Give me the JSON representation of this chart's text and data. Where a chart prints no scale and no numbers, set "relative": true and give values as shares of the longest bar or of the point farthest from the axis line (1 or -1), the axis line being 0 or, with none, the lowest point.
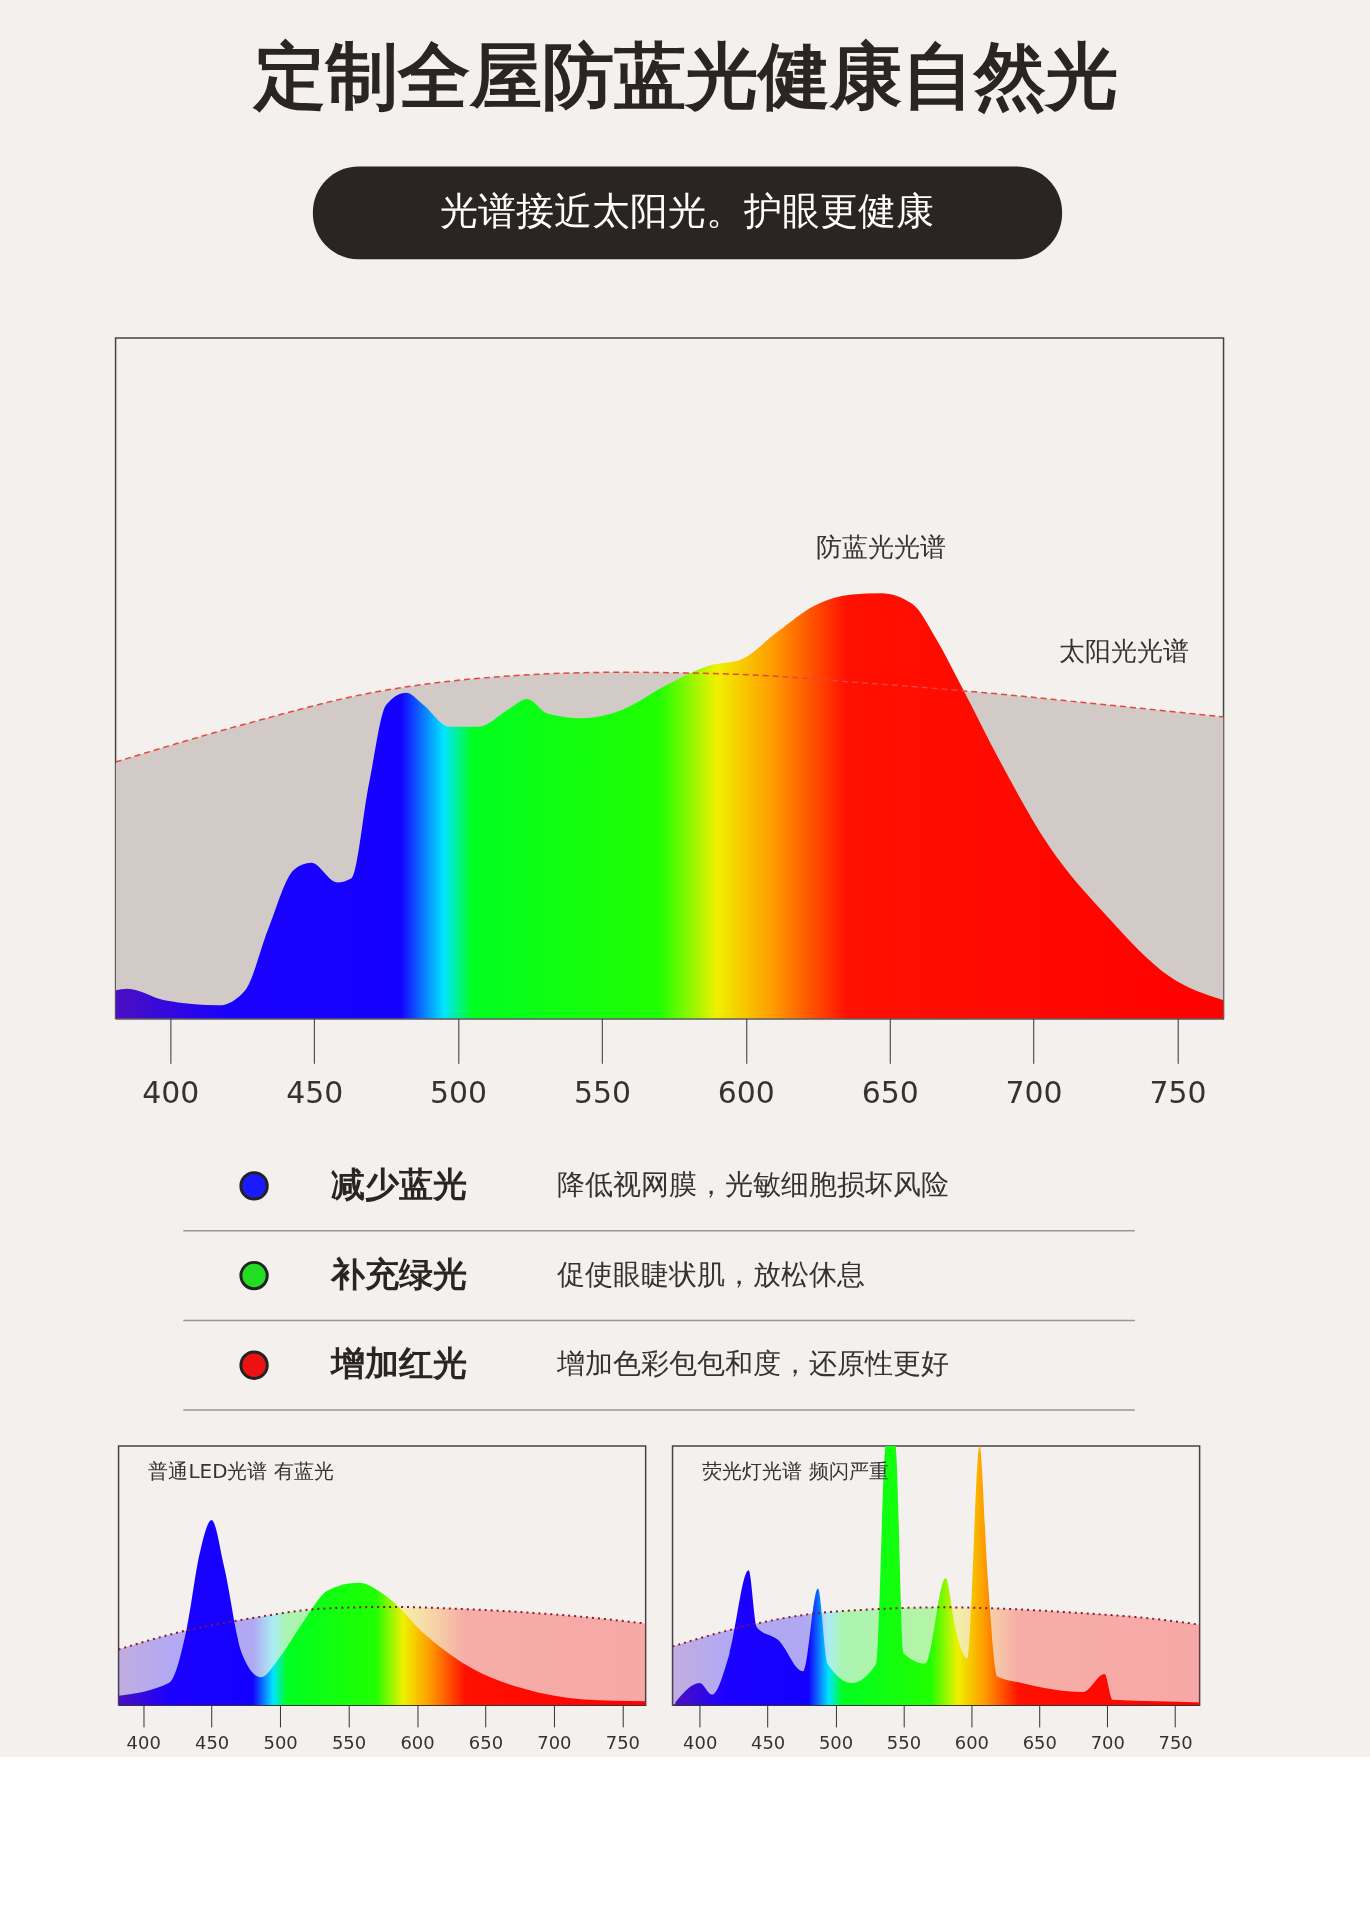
{
  "chart_data": [
    {
      "type": "area",
      "title": "定制全屋防蓝光健康自然光",
      "subtitle": "光谱接近太阳光。护眼更健康",
      "relative": true,
      "xlim": [
        381,
        766
      ],
      "xticks": [
        400,
        450,
        500,
        550,
        600,
        650,
        700,
        750
      ],
      "series": [
        {
          "name": "防蓝光光谱",
          "x": [
            381,
            385,
            398,
            417,
            426,
            434,
            443,
            449,
            458,
            463,
            469,
            475,
            482,
            488,
            497,
            507,
            518,
            524,
            531,
            543,
            556,
            573,
            588,
            598,
            611,
            624,
            637,
            647,
            658,
            666,
            675,
            688,
            705,
            726,
            747,
            766
          ],
          "values": [
            0.066,
            0.07,
            0.043,
            0.031,
            0.066,
            0.21,
            0.35,
            0.366,
            0.32,
            0.33,
            0.55,
            0.737,
            0.766,
            0.737,
            0.686,
            0.686,
            0.729,
            0.751,
            0.717,
            0.706,
            0.723,
            0.786,
            0.831,
            0.843,
            0.909,
            0.971,
            0.997,
            1,
            0.974,
            0.894,
            0.78,
            0.609,
            0.409,
            0.237,
            0.1,
            0.043
          ]
        },
        {
          "name": "太阳光光谱",
          "color": "#e8453c",
          "line_style": "dashed",
          "x": [
            381,
            427,
            470,
            513,
            556,
            598,
            641,
            683,
            726,
            766
          ],
          "values": [
            0.603,
            0.694,
            0.766,
            0.803,
            0.814,
            0.809,
            0.789,
            0.766,
            0.737,
            0.709
          ]
        }
      ]
    },
    {
      "type": "other",
      "categories": [
        "减少蓝光",
        "补充绿光",
        "增加红光"
      ],
      "colors": [
        "#1a1aff",
        "#22dd22",
        "#ee1111"
      ],
      "annotations": [
        "降低视网膜，光敏细胞损坏风险",
        "促使眼睫状肌，放松休息",
        "增加色彩包包和度，还原性更好"
      ]
    },
    {
      "type": "area",
      "relative": true,
      "xlim": [
        382,
        767
      ],
      "xticks": [
        400,
        450,
        500,
        550,
        600,
        650,
        700,
        750
      ],
      "annotations": [
        "普通LED光谱 有蓝光"
      ],
      "series": [
        {
          "x": [
            382,
            419,
            432,
            441,
            450,
            459,
            472,
            486,
            499,
            517,
            535,
            557,
            579,
            606,
            642,
            677,
            722,
            767
          ],
          "values": [
            0.05,
            0.12,
            0.42,
            0.81,
            1,
            0.75,
            0.28,
            0.15,
            0.25,
            0.45,
            0.62,
            0.66,
            0.58,
            0.38,
            0.19,
            0.09,
            0.03,
            0.02
          ]
        },
        {
          "color": "#8b1a2a",
          "line_style": "dotted",
          "x": [
            382,
            430,
            480,
            530,
            580,
            630,
            680,
            730,
            767
          ],
          "values": [
            0.3,
            0.4,
            0.47,
            0.52,
            0.53,
            0.52,
            0.5,
            0.47,
            0.44
          ]
        }
      ]
    },
    {
      "type": "area",
      "relative": true,
      "xlim": [
        380,
        768
      ],
      "xticks": [
        400,
        450,
        500,
        550,
        600,
        650,
        700,
        750
      ],
      "annotations": [
        "荧光灯光谱 频闪严重"
      ],
      "series": [
        {
          "x": [
            382,
            400,
            409,
            422,
            436,
            442,
            458,
            476,
            487,
            494,
            512,
            530,
            537,
            544,
            550,
            566,
            581,
            588,
            597,
            606,
            612,
            619,
            637,
            682,
            698,
            704,
            736,
            768
          ],
          "values": [
            0.01,
            0.085,
            0.04,
            0.2,
            0.52,
            0.3,
            0.25,
            0.13,
            0.45,
            0.16,
            0.085,
            0.16,
            1,
            1,
            0.2,
            0.16,
            0.49,
            0.3,
            0.18,
            1,
            0.49,
            0.11,
            0.085,
            0.05,
            0.12,
            0.02,
            0.014,
            0.01
          ]
        },
        {
          "color": "#8b1a2a",
          "line_style": "dotted",
          "x": [
            380,
            430,
            480,
            530,
            580,
            630,
            680,
            730,
            768
          ],
          "values": [
            0.226,
            0.3,
            0.35,
            0.37,
            0.377,
            0.37,
            0.355,
            0.335,
            0.31
          ]
        }
      ]
    }
  ]
}
